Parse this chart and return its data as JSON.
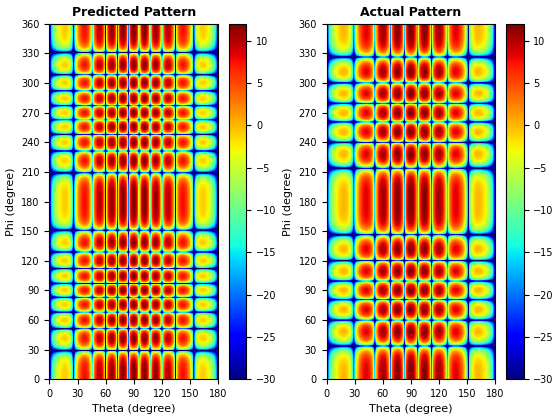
{
  "title1": "Predicted Pattern",
  "title2": "Actual Pattern",
  "xlabel": "Theta (degree)",
  "ylabel": "Phi (degree)",
  "theta_range": [
    0,
    180
  ],
  "phi_range": [
    0,
    360
  ],
  "clim": [
    -30,
    12
  ],
  "colormap": "jet",
  "theta_ticks": [
    0,
    30,
    60,
    90,
    120,
    150,
    180
  ],
  "phi_ticks": [
    0,
    30,
    60,
    90,
    120,
    150,
    180,
    210,
    240,
    270,
    300,
    330,
    360
  ],
  "n_theta": 400,
  "n_phi": 720,
  "cb_ticks": [
    10,
    5,
    0,
    -5,
    -10,
    -15,
    -20,
    -25,
    -30
  ]
}
